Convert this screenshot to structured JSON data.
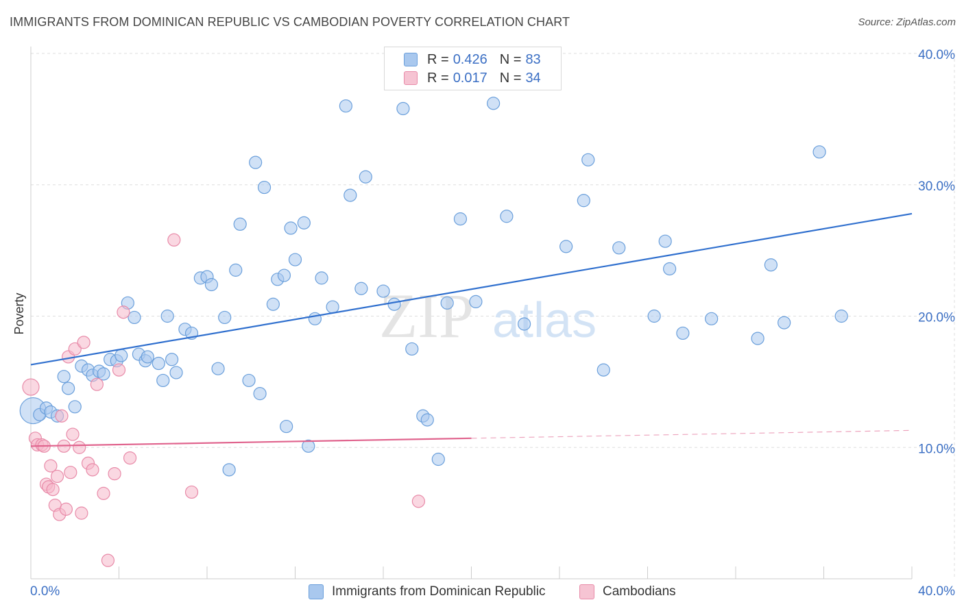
{
  "title": "IMMIGRANTS FROM DOMINICAN REPUBLIC VS CAMBODIAN POVERTY CORRELATION CHART",
  "source": "Source: ZipAtlas.com",
  "watermark": {
    "zip": "ZIP",
    "atlas": "atlas"
  },
  "legend_top": [
    {
      "r_label": "R =",
      "r_value": "0.426",
      "n_label": "N =",
      "n_value": "83"
    },
    {
      "r_label": "R =",
      "r_value": "0.017",
      "n_label": "N =",
      "n_value": "34"
    }
  ],
  "colors": {
    "blue_fill": "#a9c8ee",
    "blue_stroke": "#6a9fdb",
    "blue_line": "#2f6fce",
    "pink_fill": "#f6b8cb",
    "pink_stroke": "#e88aa8",
    "pink_line": "#e0638d",
    "axis_label": "#3b6fc4",
    "grid": "#dddddd"
  },
  "chart_data": {
    "type": "scatter",
    "ylabel": "Poverty",
    "xlim": [
      0,
      40
    ],
    "ylim": [
      0,
      40
    ],
    "x_tick_labels": [
      "0.0%",
      "40.0%"
    ],
    "y_ticks": [
      10,
      20,
      30,
      40
    ],
    "y_tick_labels": [
      "10.0%",
      "20.0%",
      "30.0%",
      "40.0%"
    ],
    "grid": true,
    "legend_position": "bottom",
    "series": [
      {
        "name": "Immigrants from Dominican Republic",
        "color": "#a9c8ee",
        "regression": {
          "x": [
            0,
            40
          ],
          "y": [
            16.3,
            27.8
          ],
          "dashed_from": null
        },
        "points": [
          [
            0.1,
            12.8
          ],
          [
            0.4,
            12.5
          ],
          [
            0.7,
            13.0
          ],
          [
            0.9,
            12.7
          ],
          [
            1.2,
            12.4
          ],
          [
            1.5,
            15.4
          ],
          [
            1.7,
            14.5
          ],
          [
            2.0,
            13.1
          ],
          [
            2.3,
            16.2
          ],
          [
            2.6,
            15.9
          ],
          [
            2.8,
            15.5
          ],
          [
            3.1,
            15.8
          ],
          [
            3.3,
            15.6
          ],
          [
            3.6,
            16.7
          ],
          [
            3.9,
            16.6
          ],
          [
            4.1,
            17.0
          ],
          [
            4.4,
            21.0
          ],
          [
            4.7,
            19.9
          ],
          [
            4.9,
            17.1
          ],
          [
            5.2,
            16.6
          ],
          [
            5.3,
            16.9
          ],
          [
            5.8,
            16.4
          ],
          [
            6.0,
            15.1
          ],
          [
            6.2,
            20.0
          ],
          [
            6.4,
            16.7
          ],
          [
            6.6,
            15.7
          ],
          [
            7.0,
            19.0
          ],
          [
            7.3,
            18.7
          ],
          [
            7.7,
            22.9
          ],
          [
            8.0,
            23.0
          ],
          [
            8.2,
            22.4
          ],
          [
            8.5,
            16.0
          ],
          [
            8.8,
            19.9
          ],
          [
            9.0,
            8.3
          ],
          [
            9.3,
            23.5
          ],
          [
            9.5,
            27.0
          ],
          [
            9.9,
            15.1
          ],
          [
            10.2,
            31.7
          ],
          [
            10.4,
            14.1
          ],
          [
            10.6,
            29.8
          ],
          [
            11.0,
            20.9
          ],
          [
            11.2,
            22.8
          ],
          [
            11.5,
            23.1
          ],
          [
            11.6,
            11.6
          ],
          [
            11.8,
            26.7
          ],
          [
            12.0,
            24.3
          ],
          [
            12.4,
            27.1
          ],
          [
            12.6,
            10.1
          ],
          [
            12.9,
            19.8
          ],
          [
            13.2,
            22.9
          ],
          [
            13.7,
            20.7
          ],
          [
            14.3,
            36.0
          ],
          [
            14.5,
            29.2
          ],
          [
            15.0,
            22.1
          ],
          [
            15.2,
            30.6
          ],
          [
            16.0,
            21.9
          ],
          [
            16.5,
            20.9
          ],
          [
            16.9,
            35.8
          ],
          [
            17.3,
            17.5
          ],
          [
            17.8,
            12.4
          ],
          [
            18.5,
            9.1
          ],
          [
            18.9,
            21.0
          ],
          [
            19.5,
            27.4
          ],
          [
            20.2,
            21.1
          ],
          [
            21.0,
            36.2
          ],
          [
            21.6,
            27.6
          ],
          [
            22.4,
            19.4
          ],
          [
            24.3,
            25.3
          ],
          [
            25.1,
            28.8
          ],
          [
            25.3,
            31.9
          ],
          [
            26.0,
            15.9
          ],
          [
            26.7,
            25.2
          ],
          [
            28.3,
            20.0
          ],
          [
            28.8,
            25.7
          ],
          [
            29.0,
            23.6
          ],
          [
            29.6,
            18.7
          ],
          [
            30.9,
            19.8
          ],
          [
            33.0,
            18.3
          ],
          [
            33.6,
            23.9
          ],
          [
            34.2,
            19.5
          ],
          [
            35.8,
            32.5
          ],
          [
            36.8,
            20.0
          ],
          [
            18.0,
            12.1
          ]
        ]
      },
      {
        "name": "Cambodians",
        "color": "#f6b8cb",
        "regression": {
          "x": [
            0,
            40
          ],
          "y": [
            10.1,
            11.3
          ],
          "dashed_from": 20
        },
        "points": [
          [
            0.0,
            14.6
          ],
          [
            0.2,
            10.7
          ],
          [
            0.3,
            10.2
          ],
          [
            0.5,
            10.2
          ],
          [
            0.6,
            10.1
          ],
          [
            0.7,
            7.2
          ],
          [
            0.8,
            7.0
          ],
          [
            0.9,
            8.6
          ],
          [
            1.0,
            6.8
          ],
          [
            1.1,
            5.6
          ],
          [
            1.2,
            7.8
          ],
          [
            1.3,
            4.9
          ],
          [
            1.4,
            12.4
          ],
          [
            1.6,
            5.3
          ],
          [
            1.7,
            16.9
          ],
          [
            1.8,
            8.1
          ],
          [
            1.9,
            11.0
          ],
          [
            2.0,
            17.5
          ],
          [
            2.2,
            10.0
          ],
          [
            2.3,
            5.0
          ],
          [
            2.4,
            18.0
          ],
          [
            2.6,
            8.8
          ],
          [
            2.8,
            8.3
          ],
          [
            3.0,
            14.8
          ],
          [
            3.3,
            6.5
          ],
          [
            3.5,
            1.4
          ],
          [
            3.8,
            8.0
          ],
          [
            4.0,
            15.9
          ],
          [
            4.2,
            20.3
          ],
          [
            4.5,
            9.2
          ],
          [
            6.5,
            25.8
          ],
          [
            7.3,
            6.6
          ],
          [
            17.6,
            5.9
          ],
          [
            1.5,
            10.1
          ]
        ]
      }
    ]
  }
}
